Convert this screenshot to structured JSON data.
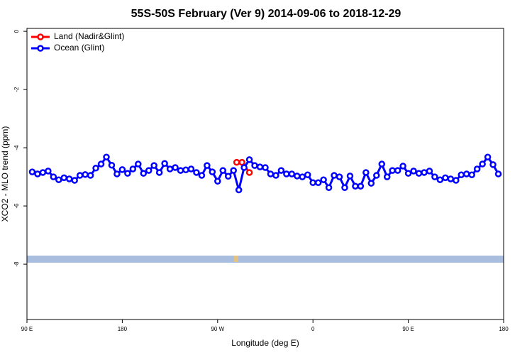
{
  "chart_data": {
    "type": "line",
    "title": "55S-50S February (Ver 9)   2014-09-06 to 2018-12-29",
    "x_label": "Longitude (deg E)",
    "y_label": "XCO2 - MLO trend (ppm)",
    "xlim": [
      90,
      540
    ],
    "xticks": [
      {
        "value": 90,
        "label": "90 E"
      },
      {
        "value": 180,
        "label": "180"
      },
      {
        "value": 270,
        "label": "90 W"
      },
      {
        "value": 360,
        "label": "0"
      },
      {
        "value": 450,
        "label": "90 E"
      },
      {
        "value": 540,
        "label": "180"
      }
    ],
    "ylim": [
      -9.9,
      0.1
    ],
    "yticks": [
      0,
      -2,
      -4,
      -6,
      -8
    ],
    "legend": "top-left",
    "series": [
      {
        "name": "Land (Nadir&Glint)",
        "color": "#ff0000",
        "x": [
          288,
          293,
          300
        ],
        "values": [
          -4.5,
          -4.5,
          -4.85
        ]
      },
      {
        "name": "Ocean (Glint)",
        "color": "#0000ff",
        "x": [
          95,
          100,
          105,
          110,
          115,
          120,
          125,
          130,
          135,
          140,
          145,
          150,
          155,
          160,
          165,
          170,
          175,
          180,
          185,
          190,
          195,
          200,
          205,
          210,
          215,
          220,
          225,
          230,
          235,
          240,
          245,
          250,
          255,
          260,
          265,
          270,
          275,
          280,
          285,
          290,
          295,
          300,
          305,
          310,
          315,
          320,
          325,
          330,
          335,
          340,
          345,
          350,
          355,
          360,
          365,
          370,
          375,
          380,
          385,
          390,
          395,
          400,
          405,
          410,
          415,
          420,
          425,
          430,
          435,
          440,
          445,
          450,
          455,
          460,
          465,
          470,
          475,
          480,
          485,
          490,
          495,
          500,
          505,
          510,
          515,
          520,
          525,
          530,
          535
        ],
        "values": [
          -4.83,
          -4.9,
          -4.85,
          -4.8,
          -5.0,
          -5.1,
          -5.03,
          -5.07,
          -5.12,
          -4.95,
          -4.92,
          -4.95,
          -4.7,
          -4.56,
          -4.32,
          -4.6,
          -4.9,
          -4.75,
          -4.88,
          -4.73,
          -4.56,
          -4.88,
          -4.78,
          -4.61,
          -4.85,
          -4.54,
          -4.73,
          -4.68,
          -4.78,
          -4.76,
          -4.73,
          -4.85,
          -4.95,
          -4.61,
          -4.83,
          -5.15,
          -4.78,
          -4.98,
          -4.78,
          -5.45,
          -4.68,
          -4.41,
          -4.61,
          -4.66,
          -4.68,
          -4.9,
          -4.95,
          -4.78,
          -4.9,
          -4.9,
          -4.97,
          -5.0,
          -4.93,
          -5.2,
          -5.2,
          -5.1,
          -5.37,
          -4.95,
          -5.0,
          -5.37,
          -4.97,
          -5.32,
          -5.32,
          -4.85,
          -5.22,
          -4.95,
          -4.56,
          -5.0,
          -4.78,
          -4.78,
          -4.63,
          -4.88,
          -4.8,
          -4.88,
          -4.85,
          -4.8,
          -5.0,
          -5.1,
          -5.03,
          -5.07,
          -5.12,
          -4.93,
          -4.9,
          -4.93,
          -4.73,
          -4.56,
          -4.32,
          -4.58,
          -4.9
        ]
      }
    ]
  }
}
